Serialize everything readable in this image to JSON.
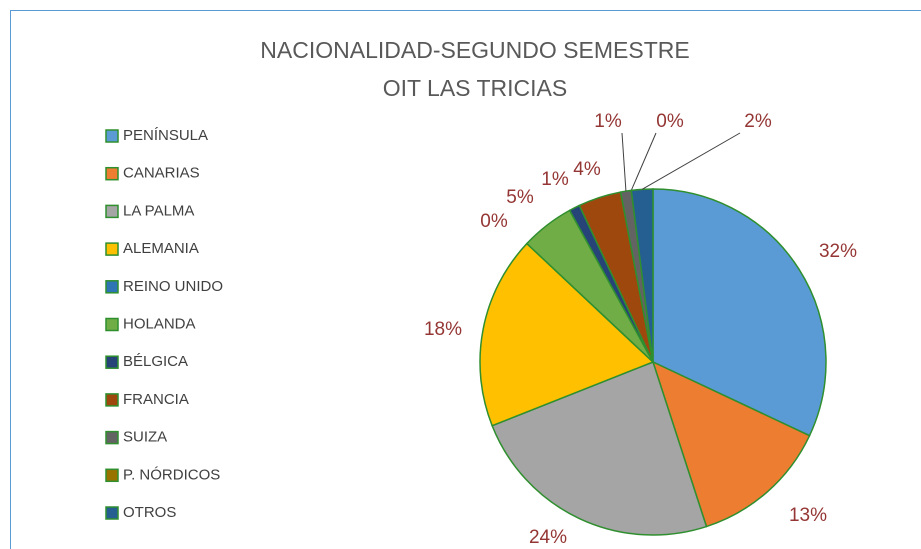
{
  "chart_data": {
    "type": "pie",
    "title": "NACIONALIDAD-SEGUNDO SEMESTRE",
    "subtitle": "OIT LAS TRICIAS",
    "categories": [
      "PENÍNSULA",
      "CANARIAS",
      "LA PALMA",
      "ALEMANIA",
      "REINO UNIDO",
      "HOLANDA",
      "BÉLGICA",
      "FRANCIA",
      "SUIZA",
      "P. NÓRDICOS",
      "OTROS"
    ],
    "values": [
      32,
      13,
      24,
      18,
      0,
      5,
      1,
      4,
      1,
      0,
      2
    ],
    "value_labels": [
      "32%",
      "13%",
      "24%",
      "18%",
      "0%",
      "5%",
      "1%",
      "4%",
      "1%",
      "0%",
      "2%"
    ],
    "colors": [
      "#5b9bd5",
      "#ed7d31",
      "#a5a5a5",
      "#ffc000",
      "#2e75b6",
      "#70ad47",
      "#264478",
      "#9e480e",
      "#636363",
      "#997300",
      "#255e91"
    ],
    "legend": "left"
  }
}
